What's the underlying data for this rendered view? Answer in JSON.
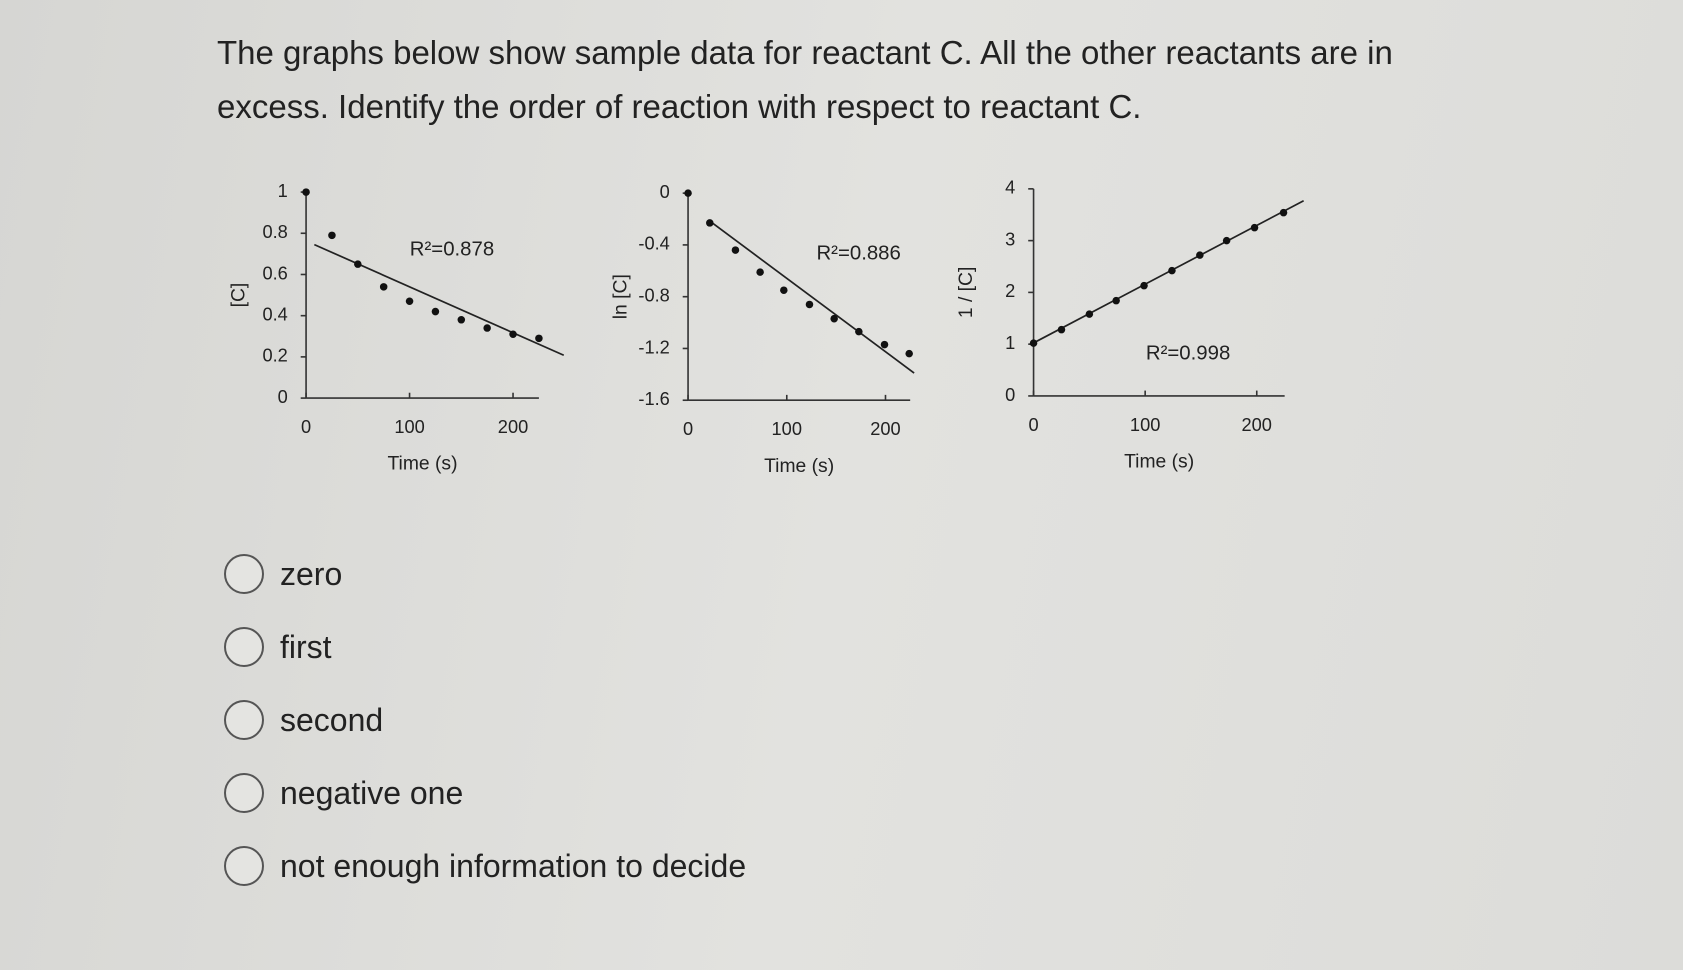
{
  "question": "The graphs below show sample data for reactant C. All the other reactants are in excess. Identify the order of reaction with respect to reactant C.",
  "chart_data": [
    {
      "type": "scatter",
      "y_label": "[C]",
      "x_label": "Time (s)",
      "annotation": "R²=0.878",
      "x": [
        0,
        25,
        50,
        75,
        100,
        125,
        150,
        175,
        200,
        225
      ],
      "values": [
        1.0,
        0.79,
        0.65,
        0.54,
        0.47,
        0.42,
        0.38,
        0.34,
        0.31,
        0.29
      ],
      "trendline": {
        "x": [
          8,
          249
        ],
        "y": [
          0.745,
          0.208
        ]
      },
      "color": "#111111",
      "xlim": [
        0,
        225
      ],
      "ylim": [
        0,
        1
      ],
      "xticks": [
        0,
        100,
        200
      ],
      "yticks": [
        0,
        0.2,
        0.4,
        0.6,
        0.8,
        1
      ]
    },
    {
      "type": "scatter",
      "y_label": "ln [C]",
      "x_label": "Time (s)",
      "annotation": "R²=0.886",
      "x": [
        0,
        22,
        48,
        73,
        97,
        123,
        148,
        173,
        199,
        224
      ],
      "values": [
        0,
        -0.23,
        -0.44,
        -0.61,
        -0.75,
        -0.86,
        -0.97,
        -1.07,
        -1.17,
        -1.24
      ],
      "trendline": {
        "x": [
          21,
          229
        ],
        "y": [
          -0.21,
          -1.39
        ]
      },
      "color": "#111111",
      "xlim": [
        0,
        225
      ],
      "ylim": [
        -1.6,
        0
      ],
      "xticks": [
        0,
        100,
        200
      ],
      "yticks": [
        -1.6,
        -1.2,
        -0.8,
        -0.4,
        0
      ]
    },
    {
      "type": "scatter",
      "y_label": "1 / [C]",
      "x_label": "Time (s)",
      "annotation": "R²=0.998",
      "x": [
        0,
        25,
        50,
        74,
        99,
        124,
        149,
        173,
        198,
        224
      ],
      "values": [
        1.02,
        1.28,
        1.58,
        1.84,
        2.13,
        2.42,
        2.72,
        3.0,
        3.25,
        3.54
      ],
      "trendline": {
        "x": [
          -3,
          242
        ],
        "y": [
          0.99,
          3.77
        ]
      },
      "color": "#111111",
      "xlim": [
        0,
        225
      ],
      "ylim": [
        0,
        4
      ],
      "xticks": [
        0,
        100,
        200
      ],
      "yticks": [
        0,
        1,
        2,
        3,
        4
      ]
    }
  ],
  "options": [
    "zero",
    "first",
    "second",
    "negative one",
    "not enough information to decide"
  ]
}
